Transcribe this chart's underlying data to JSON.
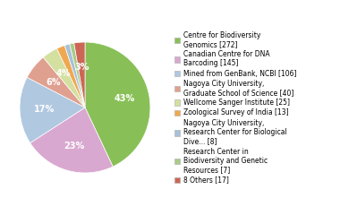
{
  "labels": [
    "Centre for Biodiversity\nGenomics [272]",
    "Canadian Centre for DNA\nBarcoding [145]",
    "Mined from GenBank, NCBI [106]",
    "Nagoya City University,\nGraduate School of Science [40]",
    "Wellcome Sanger Institute [25]",
    "Zoological Survey of India [13]",
    "Nagoya City University,\nResearch Center for Biological\nDive... [8]",
    "Research Center in\nBiodiversity and Genetic\nResources [7]",
    "8 Others [17]"
  ],
  "values": [
    272,
    145,
    106,
    40,
    25,
    13,
    8,
    7,
    17
  ],
  "colors": [
    "#88c057",
    "#d9a8d0",
    "#b0c8e0",
    "#e0a090",
    "#d4e0a0",
    "#f0a850",
    "#a8c0d8",
    "#a8cc88",
    "#cc6655"
  ],
  "figsize": [
    3.8,
    2.4
  ],
  "dpi": 100,
  "startangle": 90,
  "pct_threshold": 0.025,
  "legend_fontsize": 5.5,
  "pct_fontsize": 7.0
}
